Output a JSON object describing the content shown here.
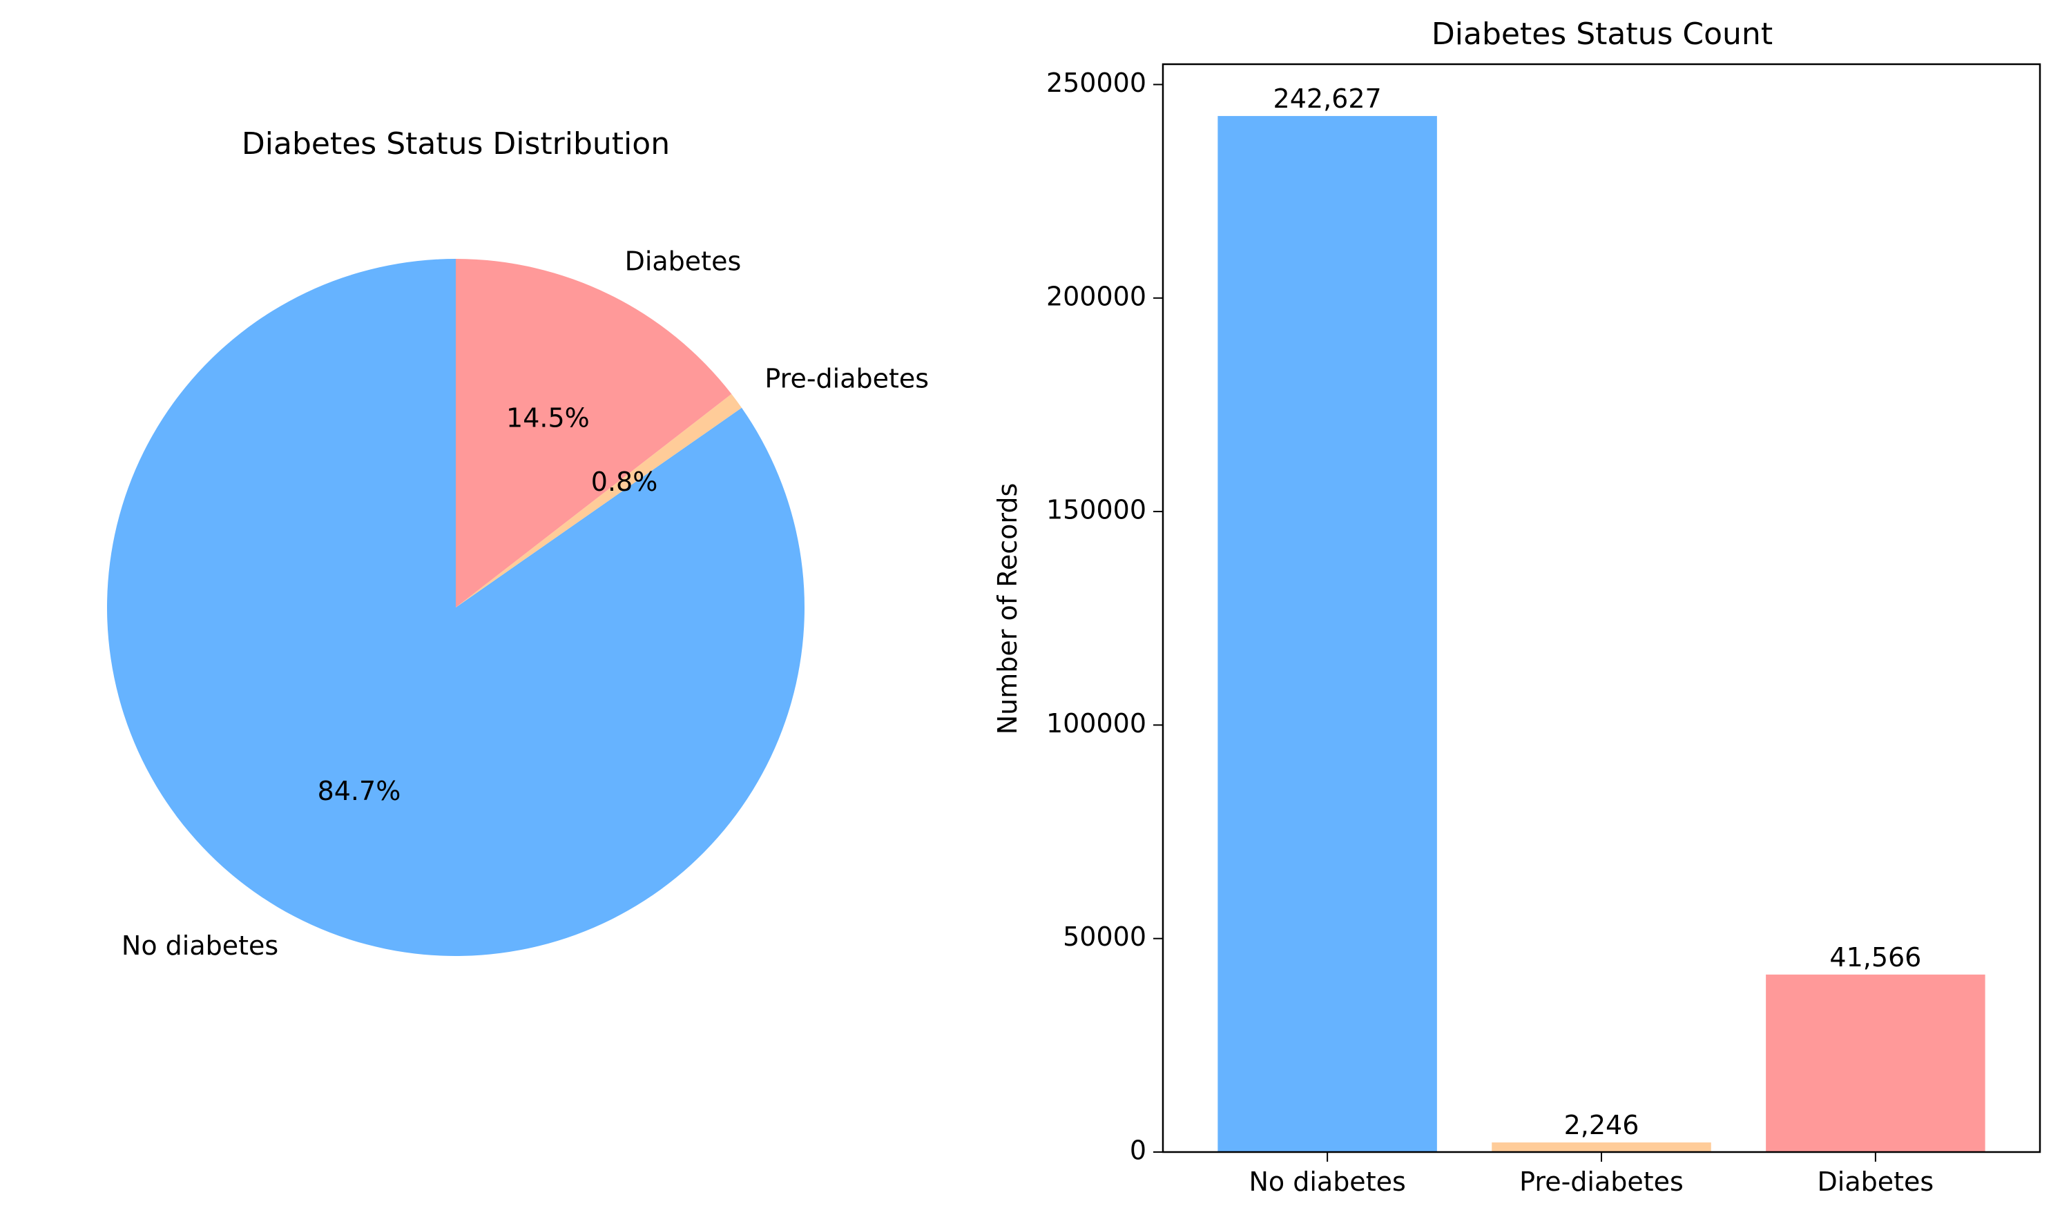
{
  "chart_data": [
    {
      "type": "pie",
      "title": "Diabetes Status Distribution",
      "categories": [
        "No diabetes",
        "Pre-diabetes",
        "Diabetes"
      ],
      "values": [
        242627,
        2246,
        41566
      ],
      "percent_labels": [
        "84.7%",
        "0.8%",
        "14.5%"
      ],
      "colors": [
        "#66b3ff",
        "#ffcc99",
        "#ff9999"
      ],
      "start_angle_deg": 90,
      "direction": "counterclockwise"
    },
    {
      "type": "bar",
      "title": "Diabetes Status Count",
      "xlabel": "",
      "ylabel": "Number of Records",
      "categories": [
        "No diabetes",
        "Pre-diabetes",
        "Diabetes"
      ],
      "values": [
        242627,
        2246,
        41566
      ],
      "value_labels": [
        "242,627",
        "2,246",
        "41,566"
      ],
      "colors": [
        "#66b3ff",
        "#ffcc99",
        "#ff9999"
      ],
      "ylim": [
        0,
        254763
      ],
      "yticks": [
        0,
        50000,
        100000,
        150000,
        200000,
        250000
      ],
      "ytick_labels": [
        "0",
        "50000",
        "100000",
        "150000",
        "200000",
        "250000"
      ],
      "grid": false,
      "legend": "none"
    }
  ]
}
